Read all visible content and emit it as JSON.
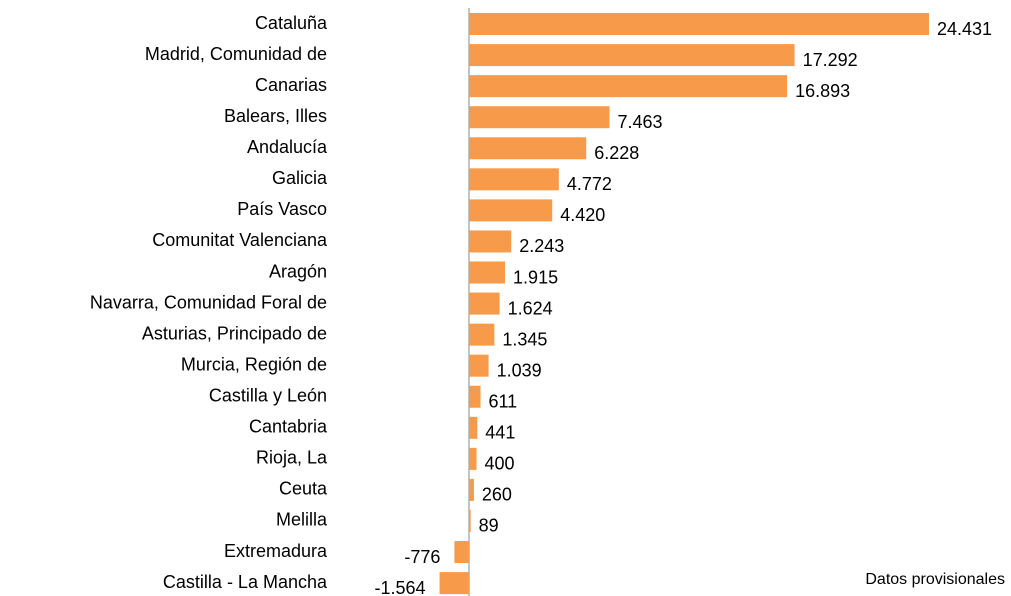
{
  "chart_data": {
    "type": "bar",
    "orientation": "horizontal",
    "categories": [
      "Cataluña",
      "Madrid, Comunidad de",
      "Canarias",
      "Balears, Illes",
      "Andalucía",
      "Galicia",
      "País Vasco",
      "Comunitat Valenciana",
      "Aragón",
      "Navarra, Comunidad Foral de",
      "Asturias, Principado de",
      "Murcia, Región de",
      "Castilla y León",
      "Cantabria",
      "Rioja, La",
      "Ceuta",
      "Melilla",
      "Extremadura",
      "Castilla - La Mancha"
    ],
    "values": [
      24431,
      17292,
      16893,
      7463,
      6228,
      4772,
      4420,
      2243,
      1915,
      1624,
      1345,
      1039,
      611,
      441,
      400,
      260,
      89,
      -776,
      -1564
    ],
    "value_labels": [
      "24.431",
      "17.292",
      "16.893",
      "7.463",
      "6.228",
      "4.772",
      "4.420",
      "2.243",
      "1.915",
      "1.624",
      "1.345",
      "1.039",
      "611",
      "441",
      "400",
      "260",
      "89",
      "-776",
      "-1.564"
    ],
    "color": "#f79a4a",
    "annotation": "Datos provisionales"
  }
}
